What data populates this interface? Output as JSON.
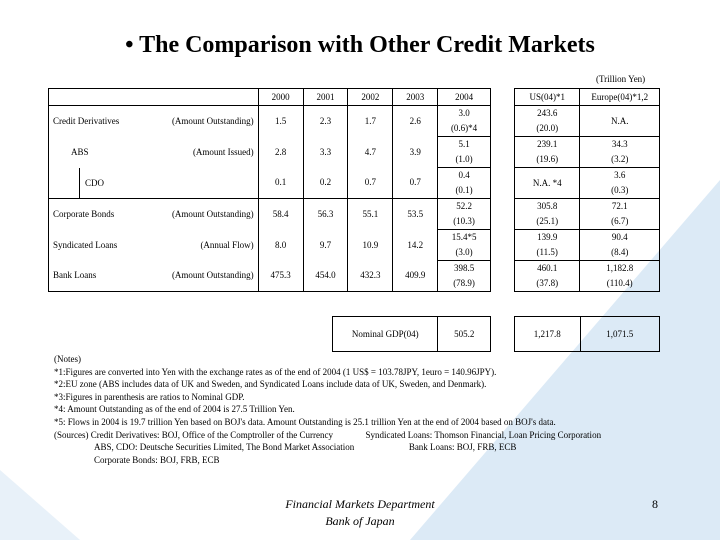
{
  "slide": {
    "title": "• The Comparison with Other Credit Markets",
    "unit": "(Trillion Yen)",
    "background_accent": "#dceaf6",
    "page_number": "8"
  },
  "table": {
    "year_headers": [
      "2000",
      "2001",
      "2002",
      "2003",
      "2004"
    ],
    "us_header": "US(04)*1",
    "europe_header": "Europe(04)*1,2",
    "rows": [
      {
        "label": "Credit Derivatives",
        "measure": "(Amount Outstanding)",
        "v2000": "1.5",
        "v2001": "2.3",
        "v2002": "1.7",
        "v2003": "2.6",
        "v2004": "3.0",
        "v2004_ratio": "(0.6)*4",
        "us": "243.6",
        "us_ratio": "(20.0)",
        "eu": "N.A.",
        "eu_ratio": ""
      },
      {
        "label": "ABS",
        "measure": "(Amount Issued)",
        "v2000": "2.8",
        "v2001": "3.3",
        "v2002": "4.7",
        "v2003": "3.9",
        "v2004": "5.1",
        "v2004_ratio": "(1.0)",
        "us": "239.1",
        "us_ratio": "(19.6)",
        "eu": "34.3",
        "eu_ratio": "(3.2)"
      },
      {
        "label": "CDO",
        "measure": "",
        "v2000": "0.1",
        "v2001": "0.2",
        "v2002": "0.7",
        "v2003": "0.7",
        "v2004": "0.4",
        "v2004_ratio": "(0.1)",
        "us": "N.A. *4",
        "us_ratio": "",
        "eu": "3.6",
        "eu_ratio": "(0.3)"
      },
      {
        "label": "Corporate Bonds",
        "measure": "(Amount Outstanding)",
        "v2000": "58.4",
        "v2001": "56.3",
        "v2002": "55.1",
        "v2003": "53.5",
        "v2004": "52.2",
        "v2004_ratio": "(10.3)",
        "us": "305.8",
        "us_ratio": "(25.1)",
        "eu": "72.1",
        "eu_ratio": "(6.7)"
      },
      {
        "label": "Syndicated Loans",
        "measure": "(Annual Flow)",
        "v2000": "8.0",
        "v2001": "9.7",
        "v2002": "10.9",
        "v2003": "14.2",
        "v2004": "15.4*5",
        "v2004_ratio": "(3.0)",
        "us": "139.9",
        "us_ratio": "(11.5)",
        "eu": "90.4",
        "eu_ratio": "(8.4)"
      },
      {
        "label": "Bank Loans",
        "measure": "(Amount Outstanding)",
        "v2000": "475.3",
        "v2001": "454.0",
        "v2002": "432.3",
        "v2003": "409.9",
        "v2004": "398.5",
        "v2004_ratio": "(78.9)",
        "us": "460.1",
        "us_ratio": "(37.8)",
        "eu": "1,182.8",
        "eu_ratio": "(110.4)"
      }
    ],
    "gdp": {
      "label": "Nominal GDP(04)",
      "japan": "505.2",
      "us": "1,217.8",
      "eu": "1,071.5"
    }
  },
  "notes": [
    "(Notes)",
    "*1:Figures are converted into Yen with the exchange rates as of the end of 2004 (1 US$ = 103.78JPY, 1euro = 140.96JPY).",
    "*2:EU zone (ABS includes data of UK and Sweden, and Syndicated Loans include data of UK, Sweden, and Denmark).",
    "*3:Figures in parenthesis are ratios to Nominal GDP.",
    "*4: Amount Outstanding as of the end of 2004 is 27.5 Trillion Yen.",
    "*5: Flows in 2004 is 19.7 trillion Yen based on BOJ's data. Amount Outstanding is 25.1 trillion Yen at the end of 2004 based on BOJ's data."
  ],
  "sources": {
    "lead": "(Sources) Credit Derivatives: BOJ, Office of the Comptroller of the Currency",
    "syndicated": "Syndicated Loans: Thomson Financial, Loan Pricing Corporation",
    "abs": "ABS, CDO: Deutsche Securities Limited, The Bond Market Association",
    "bank": "Bank Loans: BOJ, FRB, ECB",
    "corporate": "Corporate Bonds: BOJ, FRB, ECB"
  },
  "footer": {
    "line1": "Financial Markets Department",
    "line2": "Bank of Japan"
  }
}
